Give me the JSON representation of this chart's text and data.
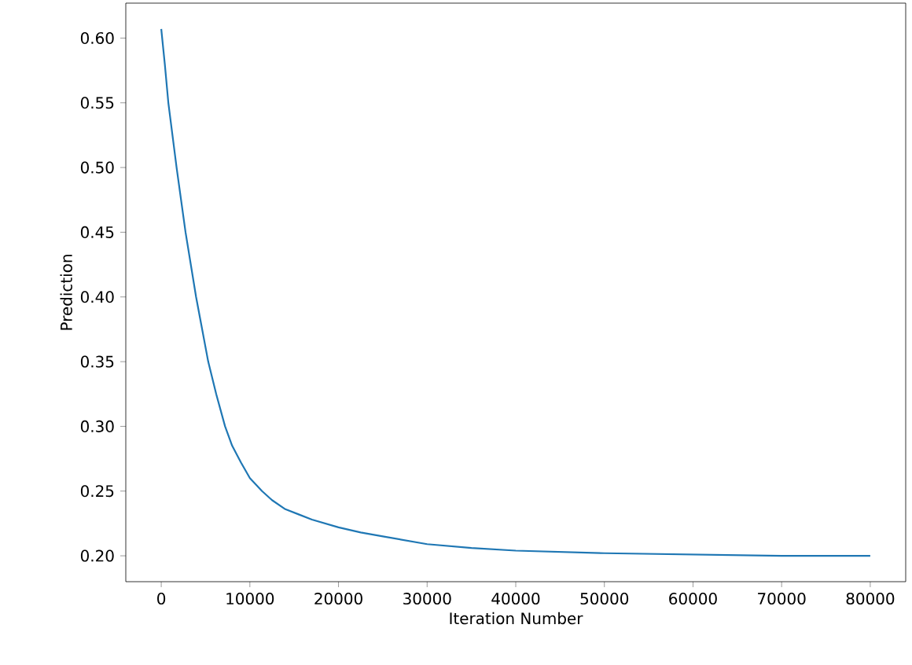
{
  "chart_data": {
    "type": "line",
    "xlabel": "Iteration Number",
    "ylabel": "Prediction",
    "x": [
      0,
      400,
      800,
      1730,
      2740,
      3930,
      5300,
      6200,
      7200,
      8000,
      9000,
      10000,
      11370,
      12500,
      14000,
      15500,
      17000,
      20000,
      22500,
      25000,
      30000,
      35000,
      40000,
      50000,
      60000,
      70000,
      80000
    ],
    "series": [
      {
        "color": "#1f77b4",
        "values": [
          0.607,
          0.58,
          0.55,
          0.5,
          0.45,
          0.4,
          0.35,
          0.325,
          0.3,
          0.285,
          0.272,
          0.26,
          0.25,
          0.243,
          0.236,
          0.232,
          0.228,
          0.222,
          0.218,
          0.215,
          0.209,
          0.206,
          0.204,
          0.202,
          0.201,
          0.2,
          0.2
        ]
      }
    ],
    "xlim": [
      -4000,
      84000
    ],
    "ylim": [
      0.18,
      0.627
    ],
    "xticks": [
      0,
      10000,
      20000,
      30000,
      40000,
      50000,
      60000,
      70000,
      80000
    ],
    "yticks": [
      {
        "value": 0.2,
        "label": "0.20"
      },
      {
        "value": 0.25,
        "label": "0.25"
      },
      {
        "value": 0.3,
        "label": "0.30"
      },
      {
        "value": 0.35,
        "label": "0.35"
      },
      {
        "value": 0.4,
        "label": "0.40"
      },
      {
        "value": 0.45,
        "label": "0.45"
      },
      {
        "value": 0.5,
        "label": "0.50"
      },
      {
        "value": 0.55,
        "label": "0.55"
      },
      {
        "value": 0.6,
        "label": "0.60"
      }
    ],
    "grid": false
  }
}
